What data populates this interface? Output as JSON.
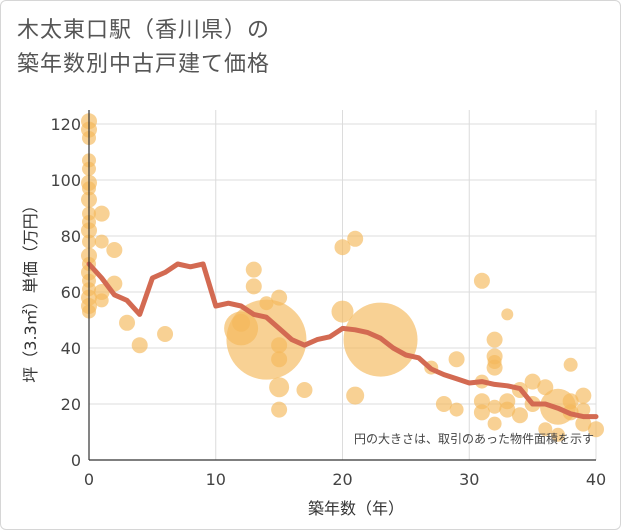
{
  "title_line1": "木太東口駅（香川県）の",
  "title_line2": "築年数別中古戸建て価格",
  "chart_data": {
    "type": "scatter",
    "xlabel": "築年数（年）",
    "ylabel": "坪（3.3㎡）単価（万円）",
    "xlim": [
      0,
      40
    ],
    "ylim": [
      0,
      125
    ],
    "xticks": [
      0,
      10,
      20,
      30,
      40
    ],
    "yticks": [
      0,
      20,
      40,
      60,
      80,
      100,
      120
    ],
    "grid": true,
    "note": "円の大きさは、取引のあった物件面積を示す",
    "colors": {
      "bubble": "#f5b85a",
      "line": "#d36a52",
      "grid": "#dcdcdc"
    },
    "bubbles": [
      {
        "x": 0,
        "y": 121,
        "size": 8
      },
      {
        "x": 0,
        "y": 118,
        "size": 8
      },
      {
        "x": 0,
        "y": 115,
        "size": 7
      },
      {
        "x": 0,
        "y": 107,
        "size": 7
      },
      {
        "x": 0,
        "y": 104,
        "size": 7
      },
      {
        "x": 0,
        "y": 99,
        "size": 8
      },
      {
        "x": 0,
        "y": 97,
        "size": 7
      },
      {
        "x": 0,
        "y": 93,
        "size": 8
      },
      {
        "x": 0,
        "y": 88,
        "size": 7
      },
      {
        "x": 0,
        "y": 85,
        "size": 7
      },
      {
        "x": 0,
        "y": 82,
        "size": 8
      },
      {
        "x": 0,
        "y": 78,
        "size": 7
      },
      {
        "x": 0,
        "y": 73,
        "size": 8
      },
      {
        "x": 0,
        "y": 70,
        "size": 7
      },
      {
        "x": 0,
        "y": 67,
        "size": 8
      },
      {
        "x": 0,
        "y": 64,
        "size": 7
      },
      {
        "x": 0,
        "y": 61,
        "size": 7
      },
      {
        "x": 0,
        "y": 58,
        "size": 8
      },
      {
        "x": 0,
        "y": 55,
        "size": 8
      },
      {
        "x": 0,
        "y": 53,
        "size": 7
      },
      {
        "x": 1,
        "y": 88,
        "size": 8
      },
      {
        "x": 1,
        "y": 78,
        "size": 7
      },
      {
        "x": 1,
        "y": 60,
        "size": 8
      },
      {
        "x": 1,
        "y": 57,
        "size": 7
      },
      {
        "x": 2,
        "y": 75,
        "size": 8
      },
      {
        "x": 2,
        "y": 63,
        "size": 8
      },
      {
        "x": 3,
        "y": 49,
        "size": 8
      },
      {
        "x": 4,
        "y": 41,
        "size": 8
      },
      {
        "x": 6,
        "y": 45,
        "size": 8
      },
      {
        "x": 12,
        "y": 47,
        "size": 17
      },
      {
        "x": 12,
        "y": 49,
        "size": 9
      },
      {
        "x": 13,
        "y": 68,
        "size": 8
      },
      {
        "x": 13,
        "y": 62,
        "size": 8
      },
      {
        "x": 14,
        "y": 43,
        "size": 40
      },
      {
        "x": 14,
        "y": 56,
        "size": 7
      },
      {
        "x": 15,
        "y": 58,
        "size": 8
      },
      {
        "x": 15,
        "y": 41,
        "size": 8
      },
      {
        "x": 15,
        "y": 36,
        "size": 8
      },
      {
        "x": 15,
        "y": 26,
        "size": 10
      },
      {
        "x": 15,
        "y": 18,
        "size": 8
      },
      {
        "x": 17,
        "y": 25,
        "size": 8
      },
      {
        "x": 20,
        "y": 76,
        "size": 8
      },
      {
        "x": 21,
        "y": 79,
        "size": 8
      },
      {
        "x": 20,
        "y": 53,
        "size": 11
      },
      {
        "x": 21,
        "y": 23,
        "size": 9
      },
      {
        "x": 23,
        "y": 43,
        "size": 37
      },
      {
        "x": 27,
        "y": 33,
        "size": 7
      },
      {
        "x": 28,
        "y": 20,
        "size": 8
      },
      {
        "x": 29,
        "y": 36,
        "size": 8
      },
      {
        "x": 29,
        "y": 18,
        "size": 7
      },
      {
        "x": 31,
        "y": 64,
        "size": 8
      },
      {
        "x": 31,
        "y": 28,
        "size": 7
      },
      {
        "x": 31,
        "y": 21,
        "size": 8
      },
      {
        "x": 31,
        "y": 17,
        "size": 8
      },
      {
        "x": 32,
        "y": 43,
        "size": 8
      },
      {
        "x": 32,
        "y": 37,
        "size": 8
      },
      {
        "x": 32,
        "y": 35,
        "size": 7
      },
      {
        "x": 32,
        "y": 33,
        "size": 8
      },
      {
        "x": 32,
        "y": 19,
        "size": 7
      },
      {
        "x": 32,
        "y": 13,
        "size": 7
      },
      {
        "x": 33,
        "y": 52,
        "size": 6
      },
      {
        "x": 33,
        "y": 21,
        "size": 8
      },
      {
        "x": 33,
        "y": 18,
        "size": 8
      },
      {
        "x": 34,
        "y": 25,
        "size": 8
      },
      {
        "x": 34,
        "y": 16,
        "size": 8
      },
      {
        "x": 35,
        "y": 28,
        "size": 8
      },
      {
        "x": 35,
        "y": 20,
        "size": 8
      },
      {
        "x": 36,
        "y": 26,
        "size": 8
      },
      {
        "x": 36,
        "y": 11,
        "size": 7
      },
      {
        "x": 37,
        "y": 19,
        "size": 18
      },
      {
        "x": 37,
        "y": 9,
        "size": 7
      },
      {
        "x": 38,
        "y": 34,
        "size": 7
      },
      {
        "x": 38,
        "y": 21,
        "size": 8
      },
      {
        "x": 38,
        "y": 17,
        "size": 8
      },
      {
        "x": 39,
        "y": 23,
        "size": 8
      },
      {
        "x": 39,
        "y": 18,
        "size": 7
      },
      {
        "x": 39,
        "y": 13,
        "size": 8
      },
      {
        "x": 40,
        "y": 11,
        "size": 8
      }
    ],
    "trend": {
      "x": [
        0,
        1,
        2,
        3,
        4,
        5,
        6,
        7,
        8,
        9,
        10,
        11,
        12,
        13,
        14,
        15,
        16,
        17,
        18,
        19,
        20,
        21,
        22,
        23,
        24,
        25,
        26,
        27,
        28,
        29,
        30,
        31,
        32,
        33,
        34,
        35,
        36,
        37,
        38,
        39,
        40
      ],
      "y": [
        70,
        65,
        59,
        57,
        52,
        65,
        67,
        70,
        69,
        70,
        55,
        56,
        55,
        52,
        51,
        47,
        43,
        41,
        43,
        44,
        47,
        46.5,
        45.5,
        43.5,
        40,
        37.5,
        36.5,
        32.5,
        30.5,
        29,
        27.5,
        28,
        27,
        26.5,
        25.5,
        20,
        20,
        18.5,
        16.5,
        15.5,
        15.5
      ]
    }
  }
}
